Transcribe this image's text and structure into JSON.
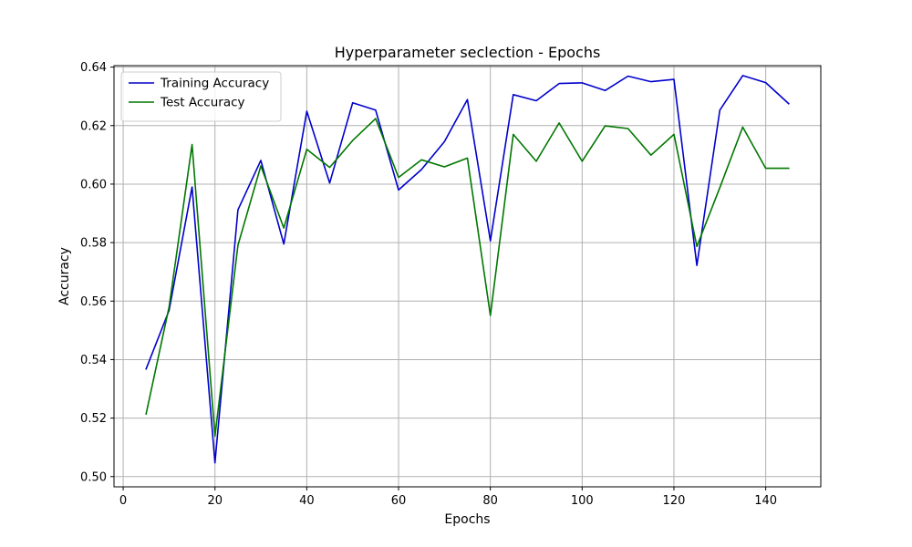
{
  "chart_data": {
    "type": "line",
    "title": "Hyperparameter seclection - Epochs",
    "xlabel": "Epochs",
    "ylabel": "Accuracy",
    "x": [
      5,
      10,
      15,
      20,
      25,
      30,
      35,
      40,
      45,
      50,
      55,
      60,
      65,
      70,
      75,
      80,
      85,
      90,
      95,
      100,
      105,
      110,
      115,
      120,
      125,
      130,
      135,
      140,
      145
    ],
    "series": [
      {
        "name": "Training Accuracy",
        "color": "#0000cc",
        "values": [
          0.5368,
          0.5568,
          0.599,
          0.5047,
          0.5912,
          0.6081,
          0.5795,
          0.6249,
          0.6004,
          0.6278,
          0.6253,
          0.598,
          0.605,
          0.6145,
          0.6289,
          0.5806,
          0.6306,
          0.6285,
          0.6344,
          0.6346,
          0.632,
          0.6369,
          0.635,
          0.6358,
          0.5722,
          0.6253,
          0.6371,
          0.6347,
          0.6275
        ]
      },
      {
        "name": "Test Accuracy",
        "color": "#007700",
        "values": [
          0.5214,
          0.558,
          0.6135,
          0.5138,
          0.5791,
          0.6062,
          0.585,
          0.6119,
          0.6057,
          0.6149,
          0.6224,
          0.6023,
          0.6083,
          0.6059,
          0.6089,
          0.5551,
          0.617,
          0.6078,
          0.6209,
          0.6078,
          0.6199,
          0.619,
          0.6099,
          0.617,
          0.5787,
          0.5988,
          0.6195,
          0.6054,
          0.6054
        ]
      }
    ],
    "xlim": [
      -2.0,
      152.0
    ],
    "ylim": [
      0.4965,
      0.6405
    ],
    "xticks": [
      0,
      20,
      40,
      60,
      80,
      100,
      120,
      140
    ],
    "yticks": [
      0.5,
      0.52,
      0.54,
      0.56,
      0.58,
      0.6,
      0.62,
      0.64
    ],
    "ytick_labels": [
      "0.50",
      "0.52",
      "0.54",
      "0.56",
      "0.58",
      "0.60",
      "0.62",
      "0.64"
    ],
    "grid": true,
    "legend_position": "top-left"
  }
}
